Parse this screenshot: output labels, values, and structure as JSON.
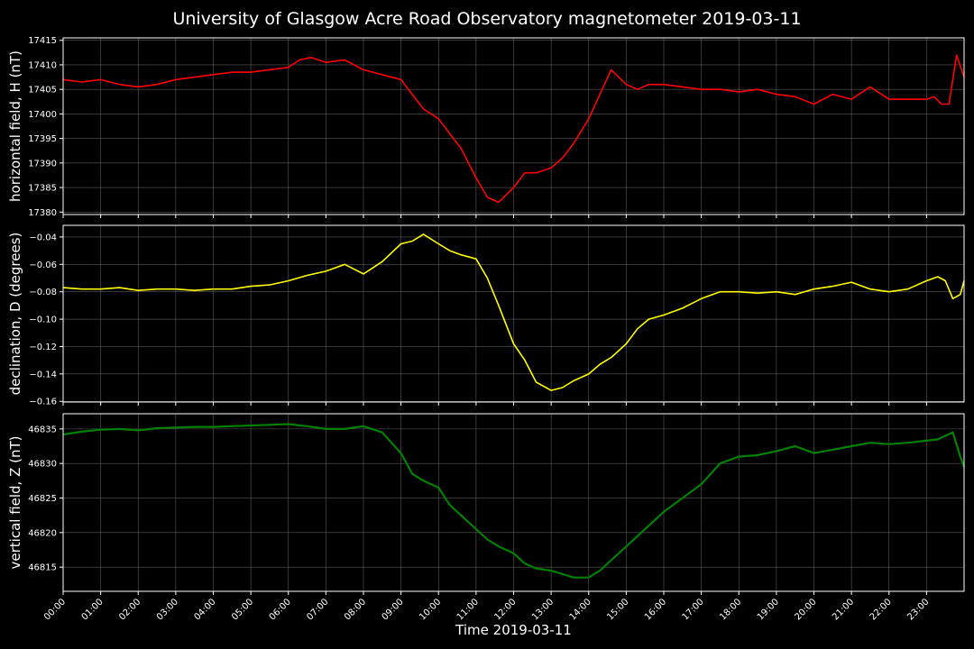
{
  "chart_data": {
    "type": "line",
    "title": "University of Glasgow Acre Road Observatory magnetometer 2019-03-11",
    "xlabel": "Time 2019-03-11",
    "x_ticks": [
      "00:00",
      "01:00",
      "02:00",
      "03:00",
      "04:00",
      "05:00",
      "06:00",
      "07:00",
      "08:00",
      "09:00",
      "10:00",
      "11:00",
      "12:00",
      "13:00",
      "14:00",
      "15:00",
      "16:00",
      "17:00",
      "18:00",
      "19:00",
      "20:00",
      "21:00",
      "22:00",
      "23:00"
    ],
    "xlim": [
      0,
      24
    ],
    "grid": true,
    "panels": [
      {
        "ylabel": "horizontal field, H (nT)",
        "color": "#ff0000",
        "ylim": [
          17379.5,
          17415.5
        ],
        "yticks": [
          17380,
          17385,
          17390,
          17395,
          17400,
          17405,
          17410,
          17415
        ],
        "ytick_labels": [
          "17380",
          "17385",
          "17390",
          "17395",
          "17400",
          "17405",
          "17410",
          "17415"
        ],
        "series": {
          "x": [
            0,
            0.5,
            1,
            1.5,
            2,
            2.5,
            3,
            3.5,
            4,
            4.5,
            5,
            5.5,
            6,
            6.3,
            6.6,
            7,
            7.5,
            8,
            8.5,
            9,
            9.3,
            9.6,
            10,
            10.3,
            10.6,
            11,
            11.3,
            11.6,
            12,
            12.3,
            12.6,
            13,
            13.3,
            13.6,
            14,
            14.3,
            14.6,
            15,
            15.3,
            15.6,
            16,
            16.5,
            17,
            17.5,
            18,
            18.5,
            19,
            19.5,
            20,
            20.5,
            21,
            21.5,
            22,
            22.5,
            23,
            23.2,
            23.4,
            23.6,
            23.8,
            24
          ],
          "y": [
            17407,
            17406.5,
            17407,
            17406,
            17405.5,
            17406,
            17407,
            17407.5,
            17408,
            17408.5,
            17408.5,
            17409,
            17409.5,
            17411,
            17411.5,
            17410.5,
            17411,
            17409,
            17408,
            17407,
            17404,
            17401,
            17399,
            17396,
            17393,
            17387,
            17383,
            17382,
            17385,
            17388,
            17388,
            17389,
            17391,
            17394,
            17399,
            17404,
            17409,
            17406,
            17405,
            17406,
            17406,
            17405.5,
            17405,
            17405,
            17404.5,
            17405,
            17404,
            17403.5,
            17402,
            17404,
            17403,
            17405.5,
            17403,
            17403,
            17403,
            17403.5,
            17402,
            17402,
            17412,
            17407.5
          ]
        }
      },
      {
        "ylabel": "declination, D (degrees)",
        "color": "#ffff00",
        "ylim": [
          -0.1605,
          -0.0315
        ],
        "yticks": [
          -0.16,
          -0.14,
          -0.12,
          -0.1,
          -0.08,
          -0.06,
          -0.04
        ],
        "ytick_labels": [
          "−0.16",
          "−0.14",
          "−0.12",
          "−0.10",
          "−0.08",
          "−0.06",
          "−0.04"
        ],
        "series": {
          "x": [
            0,
            0.5,
            1,
            1.5,
            2,
            2.5,
            3,
            3.5,
            4,
            4.5,
            5,
            5.5,
            6,
            6.5,
            7,
            7.5,
            8,
            8.5,
            9,
            9.3,
            9.6,
            10,
            10.3,
            10.6,
            11,
            11.3,
            11.6,
            12,
            12.3,
            12.6,
            13,
            13.3,
            13.6,
            14,
            14.3,
            14.6,
            15,
            15.3,
            15.6,
            16,
            16.5,
            17,
            17.5,
            18,
            18.5,
            19,
            19.5,
            20,
            20.5,
            21,
            21.5,
            22,
            22.5,
            23,
            23.3,
            23.5,
            23.7,
            23.9,
            24
          ],
          "y": [
            -0.077,
            -0.078,
            -0.078,
            -0.077,
            -0.079,
            -0.078,
            -0.078,
            -0.079,
            -0.078,
            -0.078,
            -0.076,
            -0.075,
            -0.072,
            -0.068,
            -0.065,
            -0.06,
            -0.067,
            -0.058,
            -0.045,
            -0.043,
            -0.038,
            -0.045,
            -0.05,
            -0.053,
            -0.056,
            -0.07,
            -0.09,
            -0.118,
            -0.13,
            -0.146,
            -0.152,
            -0.15,
            -0.145,
            -0.14,
            -0.133,
            -0.128,
            -0.118,
            -0.107,
            -0.1,
            -0.097,
            -0.092,
            -0.085,
            -0.08,
            -0.08,
            -0.081,
            -0.08,
            -0.082,
            -0.078,
            -0.076,
            -0.073,
            -0.078,
            -0.08,
            -0.078,
            -0.072,
            -0.069,
            -0.072,
            -0.085,
            -0.082,
            -0.072
          ]
        }
      },
      {
        "ylabel": "vertical field, Z (nT)",
        "color": "#008000",
        "ylim": [
          46811.5,
          46837.2
        ],
        "yticks": [
          46815,
          46820,
          46825,
          46830,
          46835
        ],
        "ytick_labels": [
          "46815",
          "46820",
          "46825",
          "46830",
          "46835"
        ],
        "series": {
          "x": [
            0,
            0.5,
            1,
            1.5,
            2,
            2.5,
            3,
            3.5,
            4,
            4.5,
            5,
            5.5,
            6,
            6.5,
            7,
            7.5,
            8,
            8.5,
            9,
            9.3,
            9.6,
            10,
            10.3,
            10.6,
            11,
            11.3,
            11.6,
            12,
            12.3,
            12.6,
            13,
            13.3,
            13.6,
            14,
            14.3,
            14.6,
            15,
            15.3,
            15.6,
            16,
            16.5,
            17,
            17.5,
            18,
            18.5,
            19,
            19.5,
            20,
            20.5,
            21,
            21.5,
            22,
            22.5,
            23,
            23.3,
            23.5,
            23.7,
            23.9,
            24
          ],
          "y": [
            46834.2,
            46834.6,
            46834.9,
            46835,
            46834.8,
            46835.1,
            46835.2,
            46835.3,
            46835.3,
            46835.4,
            46835.5,
            46835.6,
            46835.7,
            46835.4,
            46835,
            46835,
            46835.4,
            46834.5,
            46831.5,
            46828.5,
            46827.5,
            46826.5,
            46824,
            46822.5,
            46820.5,
            46819,
            46818,
            46817,
            46815.5,
            46814.8,
            46814.5,
            46814,
            46813.5,
            46813.5,
            46814.5,
            46816,
            46818,
            46819.5,
            46821,
            46823,
            46825,
            46827,
            46830,
            46831,
            46831.2,
            46831.8,
            46832.5,
            46831.5,
            46832,
            46832.5,
            46833,
            46832.8,
            46833,
            46833.3,
            46833.5,
            46834,
            46834.5,
            46831,
            46829.5
          ]
        }
      }
    ]
  }
}
